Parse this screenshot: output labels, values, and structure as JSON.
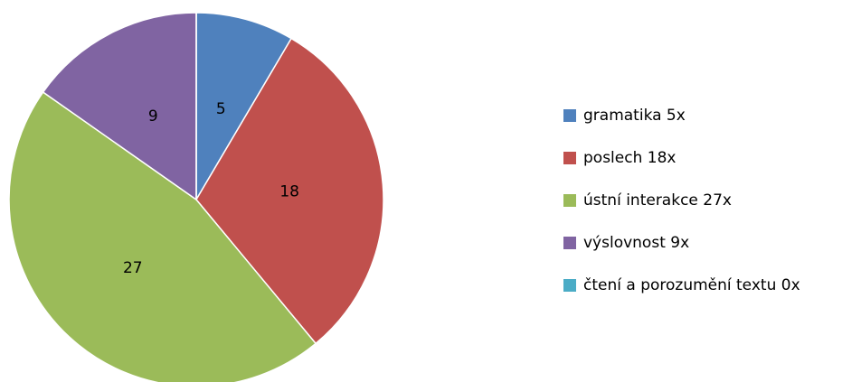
{
  "chart_data": {
    "type": "pie",
    "categories": [
      "gramatika 5x",
      "poslech 18x",
      "ústní interakce 27x",
      "výslovnost 9x",
      "čtení a porozumění textu 0x"
    ],
    "values": [
      5,
      18,
      27,
      9,
      0
    ],
    "colors": [
      "#4f81bd",
      "#c0504d",
      "#9bbb59",
      "#8064a2",
      "#4bacc6"
    ],
    "legend": "right"
  }
}
